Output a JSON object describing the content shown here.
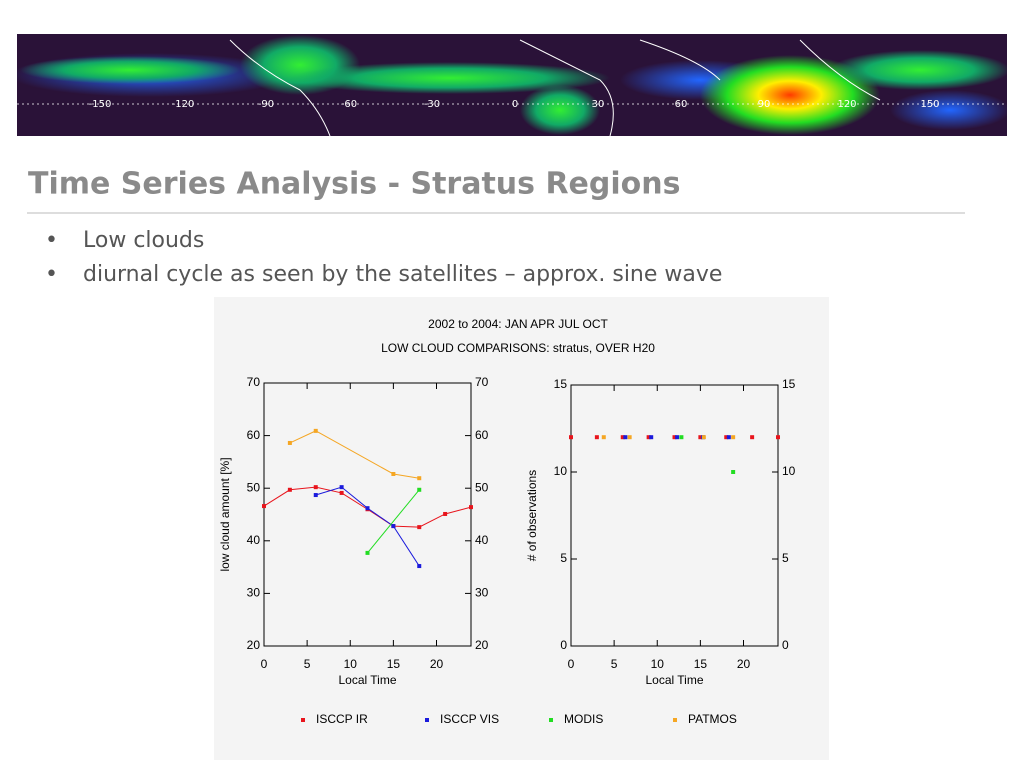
{
  "banner_labels": [
    "-150",
    "-120",
    "-90",
    "-60",
    "-30",
    "0",
    "30",
    "60",
    "90",
    "120",
    "150"
  ],
  "slide": {
    "title": "Time Series Analysis  -  Stratus Regions",
    "bullets": [
      "Low clouds",
      "diurnal cycle as seen by the satellites – approx. sine wave"
    ]
  },
  "chart_data": [
    {
      "type": "line",
      "title": "2002 to 2004: JAN APR JUL OCT",
      "subtitle": "LOW CLOUD COMPARISONS: stratus, OVER H20",
      "x_label": "Local Time",
      "y_label": "low cloud amount [%]",
      "xlim": [
        0,
        24
      ],
      "xticks": [
        0,
        5,
        10,
        15,
        20
      ],
      "ylim": [
        20,
        70
      ],
      "yticks": [
        20,
        30,
        40,
        50,
        60,
        70
      ],
      "series": [
        {
          "name": "ISCCP IR",
          "color": "#e8141c",
          "x": [
            0,
            3,
            6,
            9,
            12,
            15,
            18,
            21,
            24
          ],
          "values": [
            46.6,
            49.7,
            50.2,
            49.1,
            46,
            42.8,
            42.6,
            45.1,
            46.4
          ]
        },
        {
          "name": "ISCCP VIS",
          "color": "#1a1adc",
          "x": [
            6,
            9,
            12,
            15,
            18
          ],
          "values": [
            48.7,
            50.2,
            46.2,
            42.8,
            35.2
          ]
        },
        {
          "name": "MODIS",
          "color": "#22dd22",
          "x": [
            12,
            18
          ],
          "values": [
            37.7,
            49.7
          ]
        },
        {
          "name": "PATMOS",
          "color": "#f5a623",
          "x": [
            3,
            6,
            15,
            18
          ],
          "values": [
            58.6,
            60.9,
            52.7,
            51.9
          ]
        }
      ]
    },
    {
      "type": "scatter",
      "x_label": "Local Time",
      "y_label": "# of observations",
      "xlim": [
        0,
        24
      ],
      "xticks": [
        0,
        5,
        10,
        15,
        20
      ],
      "ylim": [
        0,
        15
      ],
      "yticks": [
        0,
        5,
        10,
        15
      ],
      "series": [
        {
          "color": "#e8141c",
          "x": [
            0,
            3,
            6,
            9,
            12,
            15,
            18,
            21,
            24
          ],
          "values": [
            12,
            12,
            12,
            12,
            12,
            12,
            12,
            12,
            12
          ]
        },
        {
          "color": "#1a1adc",
          "x": [
            6.3,
            9.3,
            12.3,
            15.3,
            18.3
          ],
          "values": [
            12,
            12,
            12,
            12,
            12
          ]
        },
        {
          "color": "#22dd22",
          "x": [
            12.8,
            18.8
          ],
          "values": [
            12,
            10
          ]
        },
        {
          "color": "#f5a623",
          "x": [
            3.8,
            6.8,
            15.4,
            18.8
          ],
          "values": [
            12,
            12,
            12,
            12
          ]
        }
      ]
    }
  ]
}
